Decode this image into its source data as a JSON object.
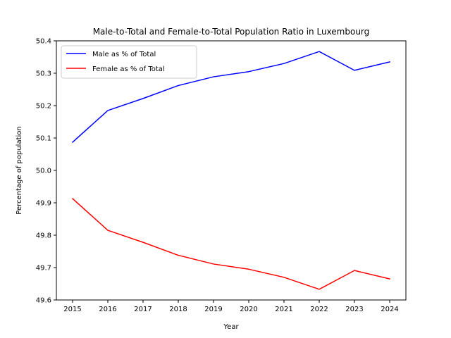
{
  "chart_data": {
    "type": "line",
    "title": "Male-to-Total and Female-to-Total Population Ratio in Luxembourg",
    "xlabel": "Year",
    "ylabel": "Percentage of population",
    "x": [
      2015,
      2016,
      2017,
      2018,
      2019,
      2020,
      2021,
      2022,
      2023,
      2024
    ],
    "ylim": [
      49.6,
      50.4
    ],
    "yticks": [
      49.6,
      49.7,
      49.8,
      49.9,
      50.0,
      50.1,
      50.2,
      50.3,
      50.4
    ],
    "series": [
      {
        "name": "Male as % of Total",
        "color": "#0000ff",
        "values": [
          50.087,
          50.185,
          50.222,
          50.262,
          50.289,
          50.305,
          50.33,
          50.367,
          50.309,
          50.335
        ]
      },
      {
        "name": "Female as % of Total",
        "color": "#ff0000",
        "values": [
          49.913,
          49.815,
          49.778,
          49.738,
          49.711,
          49.695,
          49.67,
          49.633,
          49.691,
          49.665
        ]
      }
    ],
    "legend": "upper-left",
    "grid": false
  }
}
